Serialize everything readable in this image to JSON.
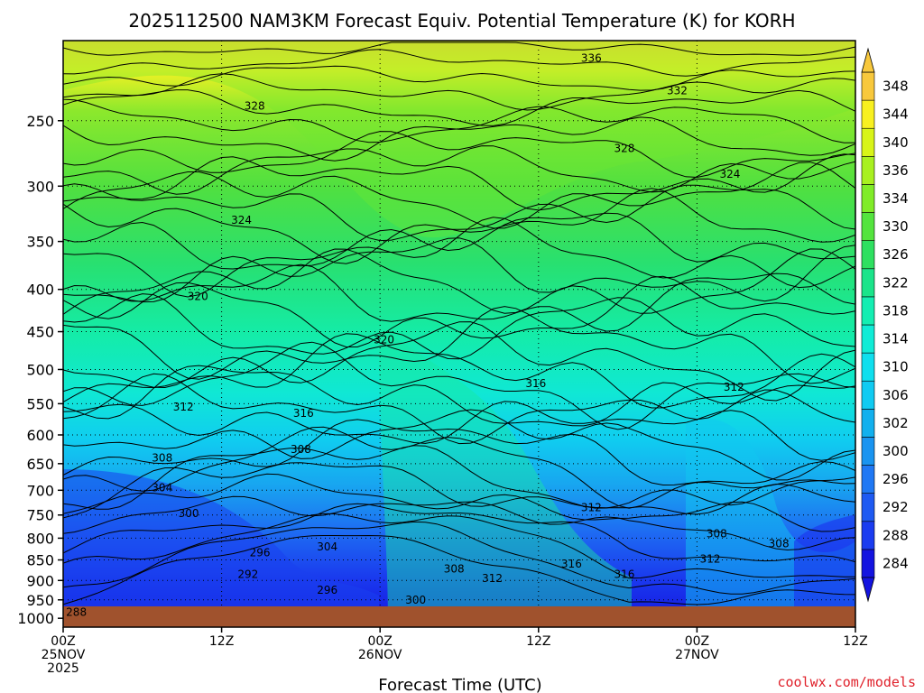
{
  "chart_data": {
    "type": "heatmap",
    "title": "2025112500 NAM3KM Forecast Equiv. Potential Temperature (K) for KORH",
    "xlabel": "Forecast Time (UTC)",
    "ylabel": "",
    "x_ticks": [
      {
        "hour": 0,
        "lines": [
          "00Z",
          "25NOV",
          "2025"
        ]
      },
      {
        "hour": 12,
        "lines": [
          "12Z"
        ]
      },
      {
        "hour": 24,
        "lines": [
          "00Z",
          "26NOV"
        ]
      },
      {
        "hour": 36,
        "lines": [
          "12Z"
        ]
      },
      {
        "hour": 48,
        "lines": [
          "00Z",
          "27NOV"
        ]
      },
      {
        "hour": 60,
        "lines": [
          "12Z"
        ]
      }
    ],
    "xlim": [
      0,
      60
    ],
    "y_ticks": [
      250,
      300,
      350,
      400,
      450,
      500,
      550,
      600,
      650,
      700,
      750,
      800,
      850,
      900,
      950,
      1000
    ],
    "ylim": [
      1025,
      200
    ],
    "y_scale": "log-pressure",
    "grid": true,
    "colorbar": {
      "labels": [
        284,
        288,
        292,
        296,
        300,
        302,
        306,
        310,
        314,
        318,
        322,
        326,
        330,
        334,
        336,
        340,
        344,
        348
      ],
      "colors": [
        "#1414e0",
        "#1a3cf0",
        "#1e5af2",
        "#1f78f4",
        "#1994f0",
        "#12b0ee",
        "#10cbf2",
        "#0fdfee",
        "#10ecd6",
        "#14eeb2",
        "#1ae48a",
        "#2ee060",
        "#54e43e",
        "#80ec28",
        "#a8f020",
        "#d8f418",
        "#f8f020",
        "#f8c83c"
      ],
      "extend": "both"
    },
    "contour_labels": [
      {
        "value": "336",
        "hour": 40.0,
        "p": 210
      },
      {
        "value": "332",
        "hour": 46.5,
        "p": 230
      },
      {
        "value": "328",
        "hour": 14.5,
        "p": 240
      },
      {
        "value": "328",
        "hour": 42.5,
        "p": 270
      },
      {
        "value": "324",
        "hour": 50.5,
        "p": 290
      },
      {
        "value": "324",
        "hour": 13.5,
        "p": 330
      },
      {
        "value": "320",
        "hour": 10.2,
        "p": 408
      },
      {
        "value": "320",
        "hour": 24.3,
        "p": 460
      },
      {
        "value": "316",
        "hour": 35.8,
        "p": 520
      },
      {
        "value": "316",
        "hour": 18.2,
        "p": 565
      },
      {
        "value": "312",
        "hour": 9.1,
        "p": 555
      },
      {
        "value": "312",
        "hour": 50.8,
        "p": 525
      },
      {
        "value": "312",
        "hour": 40.0,
        "p": 735
      },
      {
        "value": "312",
        "hour": 32.5,
        "p": 895
      },
      {
        "value": "312",
        "hour": 49.0,
        "p": 848
      },
      {
        "value": "308",
        "hour": 7.5,
        "p": 640
      },
      {
        "value": "308",
        "hour": 18.0,
        "p": 625
      },
      {
        "value": "308",
        "hour": 29.6,
        "p": 872
      },
      {
        "value": "308",
        "hour": 49.5,
        "p": 790
      },
      {
        "value": "308",
        "hour": 54.2,
        "p": 812
      },
      {
        "value": "304",
        "hour": 7.5,
        "p": 695
      },
      {
        "value": "304",
        "hour": 20.0,
        "p": 820
      },
      {
        "value": "300",
        "hour": 9.5,
        "p": 747
      },
      {
        "value": "300",
        "hour": 26.7,
        "p": 950
      },
      {
        "value": "296",
        "hour": 14.9,
        "p": 833
      },
      {
        "value": "296",
        "hour": 20.0,
        "p": 925
      },
      {
        "value": "292",
        "hour": 14.0,
        "p": 885
      },
      {
        "value": "288",
        "hour": 1.0,
        "p": 983
      },
      {
        "value": "316",
        "hour": 38.5,
        "p": 860
      },
      {
        "value": "316",
        "hour": 42.5,
        "p": 885
      }
    ]
  },
  "credit": "coolwx.com/models"
}
